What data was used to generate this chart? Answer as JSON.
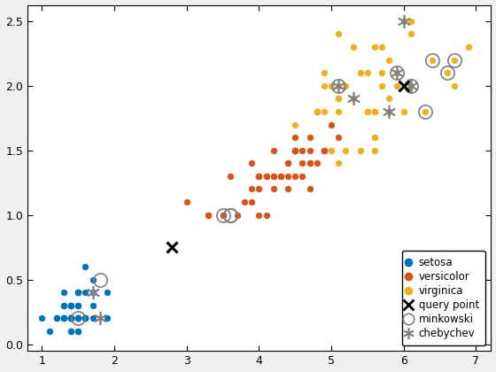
{
  "title": "",
  "xlim": [
    0.8,
    7.2
  ],
  "ylim": [
    -0.05,
    2.62
  ],
  "xticks": [
    1,
    2,
    3,
    4,
    5,
    6,
    7
  ],
  "yticks": [
    0,
    0.5,
    1.0,
    1.5,
    2.0,
    2.5
  ],
  "setosa_x": [
    1.4,
    1.4,
    1.3,
    1.5,
    1.4,
    1.7,
    1.4,
    1.5,
    1.4,
    1.5,
    1.5,
    1.6,
    1.4,
    1.1,
    1.2,
    1.5,
    1.3,
    1.4,
    1.7,
    1.5,
    1.7,
    1.5,
    1.0,
    1.7,
    1.9,
    1.6,
    1.6,
    1.5,
    1.4,
    1.6,
    1.6,
    1.5,
    1.5,
    1.4,
    1.5,
    1.2,
    1.3,
    1.4,
    1.3,
    1.5,
    1.3,
    1.3,
    1.3,
    1.6,
    1.9,
    1.4,
    1.6,
    1.4,
    1.5,
    1.4
  ],
  "setosa_y": [
    0.2,
    0.2,
    0.2,
    0.2,
    0.2,
    0.4,
    0.3,
    0.2,
    0.2,
    0.1,
    0.2,
    0.2,
    0.1,
    0.1,
    0.2,
    0.4,
    0.4,
    0.3,
    0.3,
    0.3,
    0.2,
    0.4,
    0.2,
    0.5,
    0.2,
    0.2,
    0.4,
    0.2,
    0.2,
    0.2,
    0.2,
    0.4,
    0.1,
    0.2,
    0.2,
    0.2,
    0.2,
    0.1,
    0.2,
    0.3,
    0.3,
    0.3,
    0.2,
    0.6,
    0.4,
    0.3,
    0.2,
    0.2,
    0.2,
    0.2
  ],
  "versicolor_x": [
    4.7,
    4.5,
    4.9,
    4.0,
    4.6,
    4.5,
    4.7,
    3.3,
    4.6,
    3.9,
    3.5,
    4.2,
    4.0,
    4.7,
    3.6,
    4.4,
    4.5,
    4.1,
    4.5,
    3.9,
    4.8,
    4.0,
    4.9,
    4.7,
    4.3,
    4.4,
    4.8,
    5.0,
    4.5,
    3.5,
    3.8,
    3.7,
    3.9,
    5.1,
    4.5,
    4.5,
    4.7,
    4.4,
    4.1,
    4.0,
    4.4,
    4.6,
    4.0,
    3.3,
    4.2,
    4.2,
    4.2,
    4.3,
    3.0,
    4.1
  ],
  "versicolor_y": [
    1.4,
    1.5,
    1.5,
    1.3,
    1.5,
    1.3,
    1.6,
    1.0,
    1.3,
    1.4,
    1.0,
    1.5,
    1.0,
    1.4,
    1.3,
    1.4,
    1.5,
    1.0,
    1.5,
    1.1,
    1.8,
    1.3,
    1.5,
    1.2,
    1.3,
    1.4,
    1.4,
    1.7,
    1.5,
    1.0,
    1.1,
    1.0,
    1.2,
    1.6,
    1.5,
    1.6,
    1.5,
    1.3,
    1.3,
    1.3,
    1.2,
    1.4,
    1.2,
    1.0,
    1.3,
    1.2,
    1.3,
    1.3,
    1.1,
    1.3
  ],
  "virginica_x": [
    6.0,
    5.1,
    5.9,
    5.6,
    5.8,
    6.6,
    4.5,
    6.3,
    5.8,
    6.1,
    5.1,
    5.3,
    5.5,
    5.0,
    5.1,
    5.3,
    5.5,
    6.7,
    6.9,
    5.0,
    5.7,
    4.9,
    6.7,
    4.9,
    5.7,
    6.0,
    4.8,
    4.9,
    5.6,
    5.8,
    6.1,
    6.4,
    5.6,
    5.1,
    5.6,
    6.1,
    5.6,
    5.5,
    4.8,
    5.4,
    5.6,
    5.1,
    5.9,
    5.7,
    5.2,
    5.0,
    5.2,
    5.4,
    5.1,
    5.6
  ],
  "virginica_y": [
    2.5,
    1.9,
    2.1,
    1.8,
    2.2,
    2.1,
    1.7,
    1.8,
    1.8,
    2.5,
    2.0,
    1.9,
    2.1,
    2.0,
    2.4,
    2.3,
    1.8,
    2.2,
    2.3,
    1.5,
    2.3,
    2.0,
    2.0,
    1.8,
    2.1,
    1.8,
    1.8,
    2.1,
    1.6,
    1.9,
    2.0,
    2.2,
    1.5,
    1.4,
    2.3,
    2.4,
    1.8,
    1.8,
    1.8,
    2.1,
    1.6,
    1.9,
    2.0,
    2.0,
    2.0,
    1.5,
    1.5,
    1.5,
    1.8,
    1.8
  ],
  "query_points_x": [
    2.8,
    6.0
  ],
  "query_points_y": [
    0.75,
    2.0
  ],
  "minkowski_x": [
    1.8,
    1.5,
    3.5,
    3.6,
    3.6,
    3.6,
    5.1,
    5.9,
    6.1,
    6.3,
    6.4,
    6.6,
    6.7
  ],
  "minkowski_y": [
    0.5,
    0.2,
    1.0,
    1.0,
    1.0,
    1.0,
    2.0,
    2.1,
    2.0,
    1.8,
    2.2,
    2.1,
    2.2
  ],
  "chebychev_x": [
    1.7,
    1.8,
    5.1,
    5.3,
    5.8,
    5.9,
    6.0,
    6.1
  ],
  "chebychev_y": [
    0.4,
    0.2,
    2.0,
    1.9,
    1.8,
    2.1,
    2.5,
    2.0
  ],
  "setosa_color": "#0072BD",
  "versicolor_color": "#D95319",
  "virginica_color": "#EDB120",
  "query_color": "black",
  "minkowski_edgecolor": "#808080",
  "chebychev_edgecolor": "#808080",
  "bg_color": "#F0F0F0",
  "axes_bg": "#FFFFFF",
  "figsize": [
    5.6,
    4.2
  ],
  "dpi": 100
}
